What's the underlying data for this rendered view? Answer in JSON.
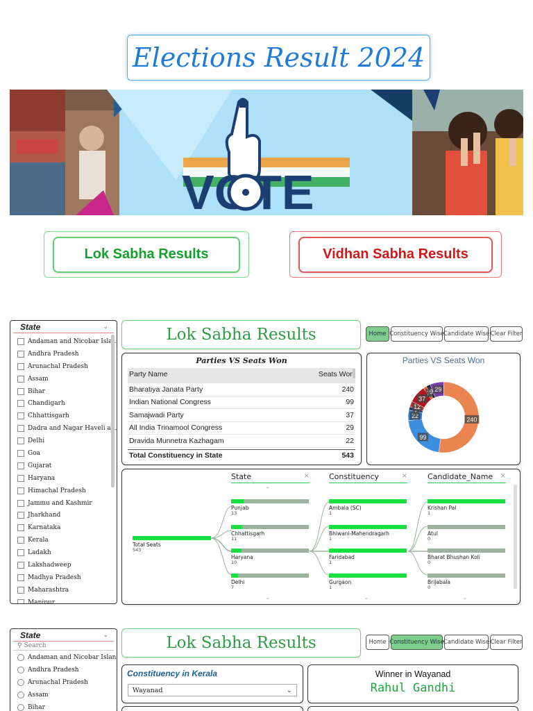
{
  "header": {
    "title": "Elections Result 2024"
  },
  "banner": {
    "vote_text": "VOTE",
    "alt": "vote-banner"
  },
  "nav": {
    "lok_label": "Lok Sabha Results",
    "vidhan_label": "Vidhan Sabha Results"
  },
  "dashboard1": {
    "slicer": {
      "title": "State",
      "items": [
        "Andaman and Nicobar Isla...",
        "Andhra Pradesh",
        "Arunachal Pradesh",
        "Assam",
        "Bihar",
        "Chandigarh",
        "Chhattisgarh",
        "Dadra and Nagar Haveli an...",
        "Delhi",
        "Goa",
        "Gujarat",
        "Haryana",
        "Himachal Pradesh",
        "Jammu and Kashmir",
        "Jharkhand",
        "Karnataka",
        "Kerala",
        "Ladakh",
        "Lakshadweep",
        "Madhya Pradesh",
        "Maharashtra",
        "Manipur"
      ]
    },
    "title": "Lok Sabha Results",
    "tabs": [
      "Home",
      "Constituency Wise",
      "Candidate Wise",
      "Clear Filter"
    ],
    "table": {
      "title": "Parties VS Seats Won",
      "col1": "Party Name",
      "col2": "Seats Won",
      "rows": [
        {
          "party": "Bharatiya Janata Party",
          "seats": "240"
        },
        {
          "party": "Indian National Congress",
          "seats": "99"
        },
        {
          "party": "Samajwadi Party",
          "seats": "37"
        },
        {
          "party": "All India Trinamool Congress",
          "seats": "29"
        },
        {
          "party": "Dravida Munnetra Kazhagam",
          "seats": "22"
        }
      ],
      "total_label": "Total Constituency in State",
      "total_value": "543"
    },
    "donut": {
      "title": "Parties VS Seats Won"
    },
    "decomp": {
      "cols": [
        "State",
        "Constituency",
        "Candidate_Name"
      ],
      "root": {
        "label": "Total Seats",
        "value": "543"
      },
      "state_nodes": [
        {
          "label": "Punjab",
          "value": "13",
          "fill": 0.16
        },
        {
          "label": "Chhattisgarh",
          "value": "11",
          "fill": 0.14
        },
        {
          "label": "Haryana",
          "value": "10",
          "fill": 0.13
        },
        {
          "label": "Delhi",
          "value": "7",
          "fill": 0.09
        }
      ],
      "const_nodes": [
        {
          "label": "Ambala (SC)",
          "value": "1",
          "fill": 1
        },
        {
          "label": "Bhiwani-Mahendragarh",
          "value": "1",
          "fill": 1
        },
        {
          "label": "Faridabad",
          "value": "1",
          "fill": 1
        },
        {
          "label": "Gurgaon",
          "value": "1",
          "fill": 1
        }
      ],
      "cand_nodes": [
        {
          "label": "Krishan Pal",
          "value": "1",
          "fill": 1
        },
        {
          "label": "Atul",
          "value": "0",
          "fill": 0
        },
        {
          "label": "Bharat Bhushan Koli",
          "value": "0",
          "fill": 0
        },
        {
          "label": "Brijabala",
          "value": "0",
          "fill": 0
        }
      ]
    }
  },
  "dashboard2": {
    "slicer": {
      "title": "State",
      "search_placeholder": "Search",
      "items": [
        "Andaman and Nicobar Islands",
        "Andhra Pradesh",
        "Arunachal Pradesh",
        "Assam",
        "Bihar"
      ]
    },
    "title": "Lok Sabha Results",
    "tabs": [
      "Home",
      "Constituency Wise",
      "Candidate Wise",
      "Clear Filter"
    ],
    "kerala": {
      "title": "Constituency in Kerala",
      "selected": "Wayanad"
    },
    "winner": {
      "title": "Winner in Wayanad",
      "name": "Rahul Gandhi"
    }
  },
  "chart_data": {
    "type": "pie",
    "title": "Parties VS Seats Won",
    "slices": [
      {
        "label": "Bharatiya Janata Party",
        "value": 240,
        "color": "#ea8552"
      },
      {
        "label": "Indian National Congress",
        "value": 99,
        "color": "#3b8fe0"
      },
      {
        "label": "other",
        "value": 22,
        "color": "#2f7fd6"
      },
      {
        "label": "other",
        "value": 7,
        "color": "#1d3d7c"
      },
      {
        "label": "other",
        "value": 12,
        "color": "#d9322f"
      },
      {
        "label": "Samajwadi Party",
        "value": 37,
        "color": "#b4171a"
      },
      {
        "label": "other",
        "value": 7,
        "color": "#f0602c"
      },
      {
        "label": "other",
        "value": 9,
        "color": "#222244"
      },
      {
        "label": "All India Trinamool Congress",
        "value": 29,
        "color": "#7b3bb4"
      }
    ]
  },
  "colors": {
    "accent_green": "#2e9b45",
    "title_blue": "#1e7bd8",
    "vidhan_red": "#d01818"
  }
}
